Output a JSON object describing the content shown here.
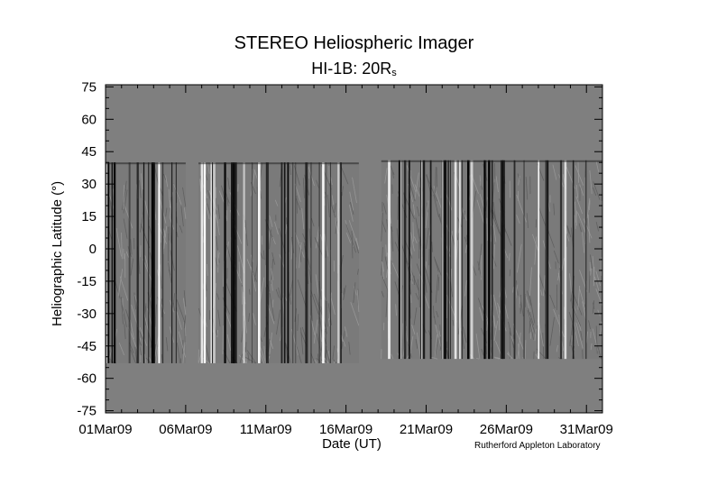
{
  "chart_data": {
    "type": "heatmap",
    "title": "STEREO Heliospheric Imager",
    "subtitle_prefix": "HI-1B: 20R",
    "subtitle_sub": "s",
    "xlabel": "Date (UT)",
    "ylabel": "Heliographic Latitude (°)",
    "credit": "Rutherford Appleton Laboratory",
    "x_ticks": [
      "01Mar09",
      "06Mar09",
      "11Mar09",
      "16Mar09",
      "21Mar09",
      "26Mar09",
      "31Mar09"
    ],
    "x_range_days": [
      1,
      32
    ],
    "y_ticks": [
      75,
      60,
      45,
      30,
      15,
      0,
      -15,
      -30,
      -45,
      -60,
      -75
    ],
    "ylim": [
      -76,
      76
    ],
    "background_color": "#7f7f7f",
    "data_blocks": [
      {
        "start_day": 1.0,
        "end_day": 6.0,
        "lat_top": 40,
        "lat_bottom": -53
      },
      {
        "start_day": 6.8,
        "end_day": 16.8,
        "lat_top": 40,
        "lat_bottom": -53
      },
      {
        "start_day": 18.2,
        "end_day": 32.0,
        "lat_top": 41,
        "lat_bottom": -51
      }
    ]
  }
}
